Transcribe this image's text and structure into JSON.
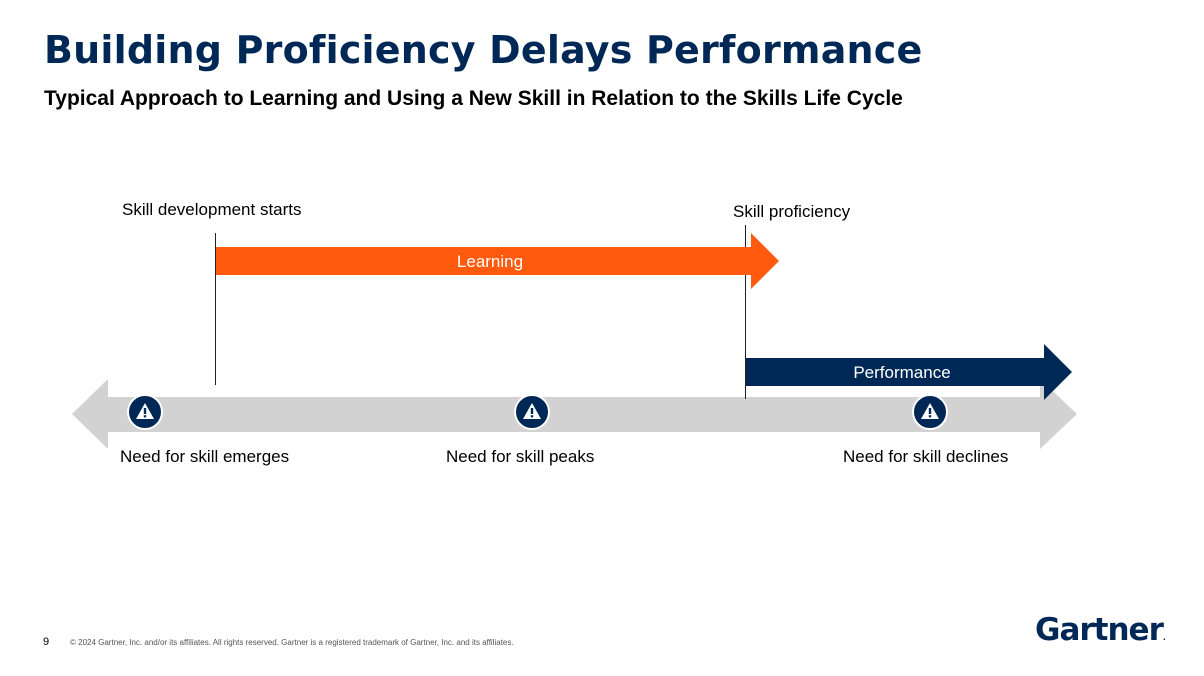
{
  "slide": {
    "title": "Building Proficiency Delays Performance",
    "subtitle": "Typical Approach to Learning and Using a New Skill in Relation to the Skills Life Cycle"
  },
  "diagram": {
    "markers": {
      "start": "Skill development starts",
      "proficiency": "Skill proficiency"
    },
    "arrows": {
      "learning": "Learning",
      "performance": "Performance"
    },
    "lifecycle": {
      "emerges": "Need for skill emerges",
      "peaks": "Need for skill peaks",
      "declines": "Need for skill declines"
    },
    "icons": {
      "stage_icon": "warning-icon"
    },
    "colors": {
      "learning": "#ff5a0d",
      "performance": "#002856",
      "lifecycle": "#d2d2d2",
      "icon_bg": "#002856"
    }
  },
  "footer": {
    "page_number": "9",
    "copyright": "© 2024 Gartner, Inc. and/or its affiliates. All rights reserved. Gartner is a registered trademark of Gartner, Inc. and its affiliates.",
    "logo": "Gartner",
    "logo_mark": "."
  }
}
